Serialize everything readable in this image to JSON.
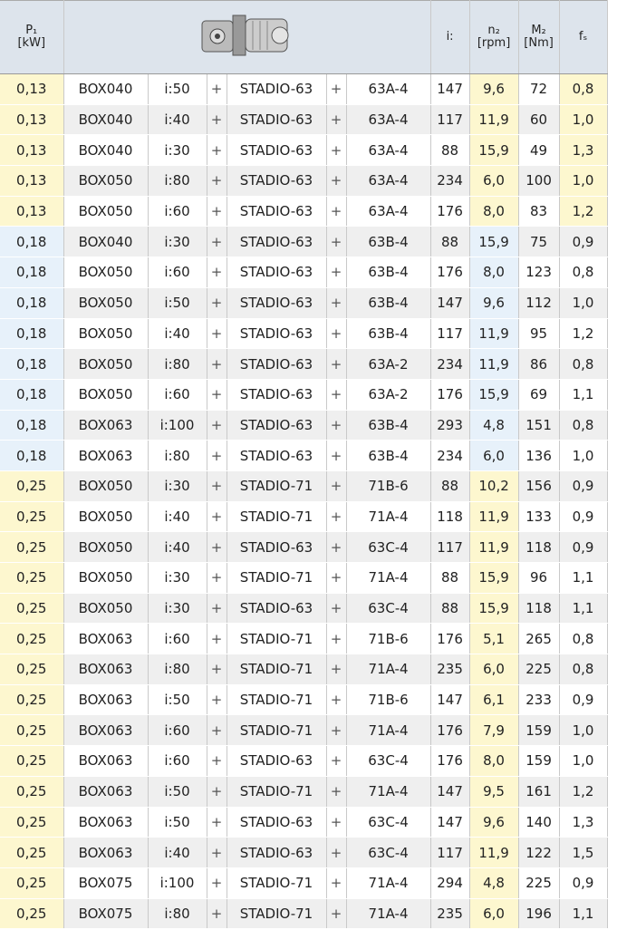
{
  "header": {
    "p1": "P₁",
    "p1_unit": "[kW]",
    "i": "i:",
    "n2": "n₂",
    "n2_unit": "[rpm]",
    "m2": "M₂",
    "m2_unit": "[Nm]",
    "fs": "fₛ"
  },
  "table": {
    "rows": [
      [
        "0,13",
        "BOX040",
        "i:50",
        "+",
        "STADIO-63",
        "+",
        "63A-4",
        "147",
        "9,6",
        "72",
        "0,8"
      ],
      [
        "0,13",
        "BOX040",
        "i:40",
        "+",
        "STADIO-63",
        "+",
        "63A-4",
        "117",
        "11,9",
        "60",
        "1,0"
      ],
      [
        "0,13",
        "BOX040",
        "i:30",
        "+",
        "STADIO-63",
        "+",
        "63A-4",
        "88",
        "15,9",
        "49",
        "1,3"
      ],
      [
        "0,13",
        "BOX050",
        "i:80",
        "+",
        "STADIO-63",
        "+",
        "63A-4",
        "234",
        "6,0",
        "100",
        "1,0"
      ],
      [
        "0,13",
        "BOX050",
        "i:60",
        "+",
        "STADIO-63",
        "+",
        "63A-4",
        "176",
        "8,0",
        "83",
        "1,2"
      ],
      [
        "0,18",
        "BOX040",
        "i:30",
        "+",
        "STADIO-63",
        "+",
        "63B-4",
        "88",
        "15,9",
        "75",
        "0,9"
      ],
      [
        "0,18",
        "BOX050",
        "i:60",
        "+",
        "STADIO-63",
        "+",
        "63B-4",
        "176",
        "8,0",
        "123",
        "0,8"
      ],
      [
        "0,18",
        "BOX050",
        "i:50",
        "+",
        "STADIO-63",
        "+",
        "63B-4",
        "147",
        "9,6",
        "112",
        "1,0"
      ],
      [
        "0,18",
        "BOX050",
        "i:40",
        "+",
        "STADIO-63",
        "+",
        "63B-4",
        "117",
        "11,9",
        "95",
        "1,2"
      ],
      [
        "0,18",
        "BOX050",
        "i:80",
        "+",
        "STADIO-63",
        "+",
        "63A-2",
        "234",
        "11,9",
        "86",
        "0,8"
      ],
      [
        "0,18",
        "BOX050",
        "i:60",
        "+",
        "STADIO-63",
        "+",
        "63A-2",
        "176",
        "15,9",
        "69",
        "1,1"
      ],
      [
        "0,18",
        "BOX063",
        "i:100",
        "+",
        "STADIO-63",
        "+",
        "63B-4",
        "293",
        "4,8",
        "151",
        "0,8"
      ],
      [
        "0,18",
        "BOX063",
        "i:80",
        "+",
        "STADIO-63",
        "+",
        "63B-4",
        "234",
        "6,0",
        "136",
        "1,0"
      ],
      [
        "0,25",
        "BOX050",
        "i:30",
        "+",
        "STADIO-71",
        "+",
        "71B-6",
        "88",
        "10,2",
        "156",
        "0,9"
      ],
      [
        "0,25",
        "BOX050",
        "i:40",
        "+",
        "STADIO-71",
        "+",
        "71A-4",
        "118",
        "11,9",
        "133",
        "0,9"
      ],
      [
        "0,25",
        "BOX050",
        "i:40",
        "+",
        "STADIO-63",
        "+",
        "63C-4",
        "117",
        "11,9",
        "118",
        "0,9"
      ],
      [
        "0,25",
        "BOX050",
        "i:30",
        "+",
        "STADIO-71",
        "+",
        "71A-4",
        "88",
        "15,9",
        "96",
        "1,1"
      ],
      [
        "0,25",
        "BOX050",
        "i:30",
        "+",
        "STADIO-63",
        "+",
        "63C-4",
        "88",
        "15,9",
        "118",
        "1,1"
      ],
      [
        "0,25",
        "BOX063",
        "i:60",
        "+",
        "STADIO-71",
        "+",
        "71B-6",
        "176",
        "5,1",
        "265",
        "0,8"
      ],
      [
        "0,25",
        "BOX063",
        "i:80",
        "+",
        "STADIO-71",
        "+",
        "71A-4",
        "235",
        "6,0",
        "225",
        "0,8"
      ],
      [
        "0,25",
        "BOX063",
        "i:50",
        "+",
        "STADIO-71",
        "+",
        "71B-6",
        "147",
        "6,1",
        "233",
        "0,9"
      ],
      [
        "0,25",
        "BOX063",
        "i:60",
        "+",
        "STADIO-71",
        "+",
        "71A-4",
        "176",
        "7,9",
        "159",
        "1,0"
      ],
      [
        "0,25",
        "BOX063",
        "i:60",
        "+",
        "STADIO-63",
        "+",
        "63C-4",
        "176",
        "8,0",
        "159",
        "1,0"
      ],
      [
        "0,25",
        "BOX063",
        "i:50",
        "+",
        "STADIO-71",
        "+",
        "71A-4",
        "147",
        "9,5",
        "161",
        "1,2"
      ],
      [
        "0,25",
        "BOX063",
        "i:50",
        "+",
        "STADIO-63",
        "+",
        "63C-4",
        "147",
        "9,6",
        "140",
        "1,3"
      ],
      [
        "0,25",
        "BOX063",
        "i:40",
        "+",
        "STADIO-63",
        "+",
        "63C-4",
        "117",
        "11,9",
        "122",
        "1,5"
      ],
      [
        "0,25",
        "BOX075",
        "i:100",
        "+",
        "STADIO-71",
        "+",
        "71A-4",
        "294",
        "4,8",
        "225",
        "0,9"
      ],
      [
        "0,25",
        "BOX075",
        "i:80",
        "+",
        "STADIO-71",
        "+",
        "71A-4",
        "235",
        "6,0",
        "196",
        "1,1"
      ]
    ]
  }
}
